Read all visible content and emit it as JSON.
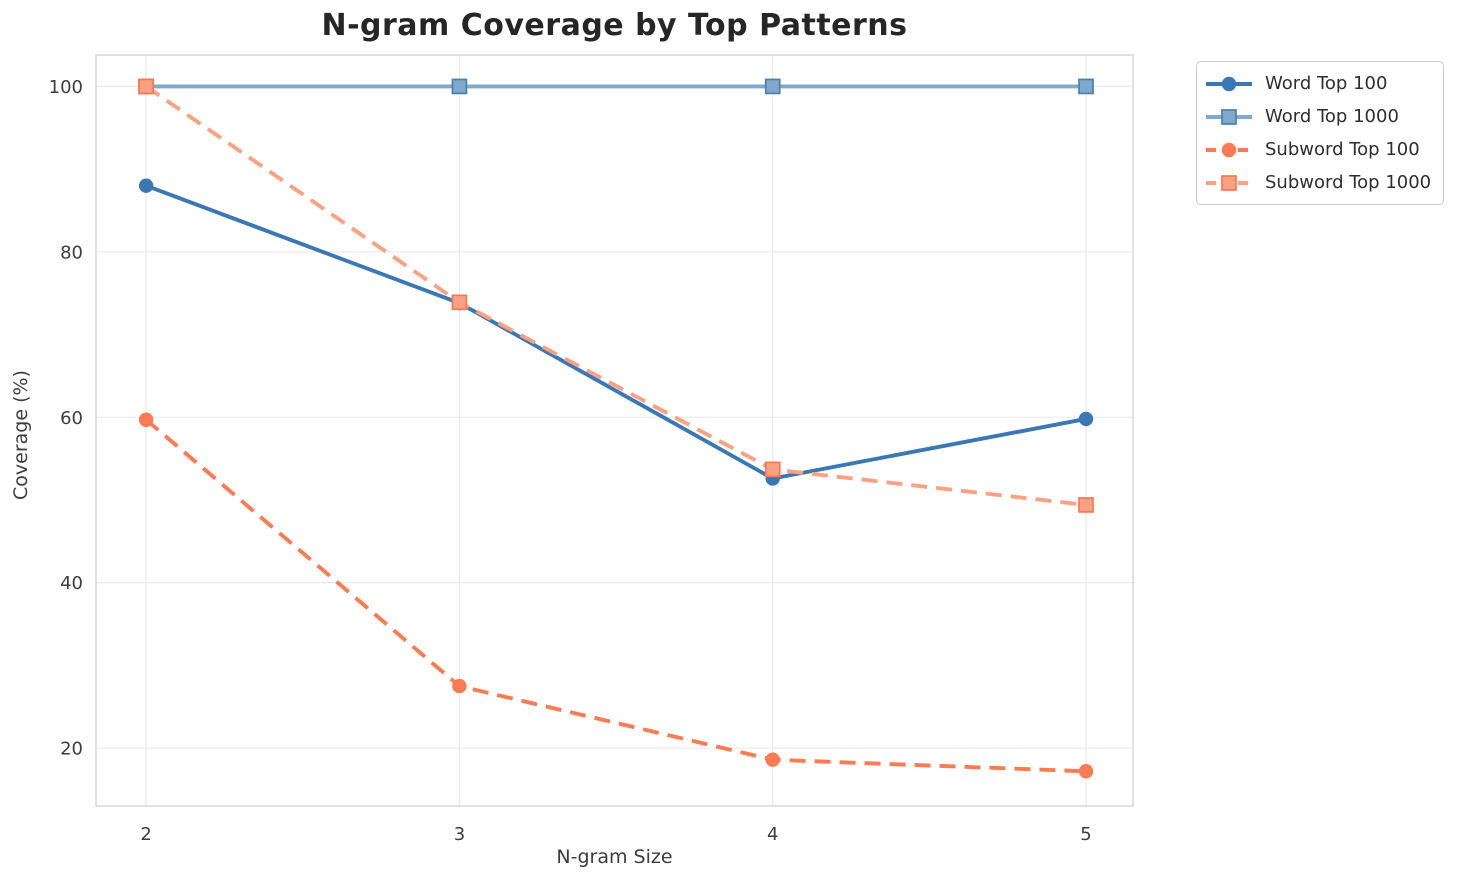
{
  "chart_data": {
    "type": "line",
    "title": "N-gram Coverage by Top Patterns",
    "xlabel": "N-gram Size",
    "ylabel": "Coverage (%)",
    "x": [
      2,
      3,
      4,
      5
    ],
    "xtick_labels": [
      "2",
      "3",
      "4",
      "5"
    ],
    "ytick_values": [
      20,
      40,
      60,
      80,
      100
    ],
    "ytick_labels": [
      "20",
      "40",
      "60",
      "80",
      "100"
    ],
    "xlim": [
      1.84,
      5.15
    ],
    "ylim": [
      13.0,
      103.8
    ],
    "grid": true,
    "legend_position": "outside-top-right",
    "series": [
      {
        "name": "Word Top 100",
        "color": "#3a78b5",
        "line_style": "solid",
        "marker": "circle",
        "marker_edge": "#3a78b5",
        "values": [
          88.0,
          73.8,
          52.6,
          59.8
        ]
      },
      {
        "name": "Word Top 1000",
        "color": "#7fa8cd",
        "line_style": "solid",
        "marker": "square",
        "marker_edge": "#4d7fae",
        "values": [
          100,
          100,
          100,
          100
        ]
      },
      {
        "name": "Subword Top 100",
        "color": "#fc7b52",
        "line_style": "dashed",
        "marker": "circle",
        "marker_edge": "#fc7b52",
        "values": [
          59.7,
          27.5,
          18.6,
          17.2
        ]
      },
      {
        "name": "Subword Top 1000",
        "color": "#fda183",
        "line_style": "dashed",
        "marker": "square",
        "marker_edge": "#fb7750",
        "values": [
          100,
          73.9,
          53.7,
          49.4
        ]
      }
    ],
    "colors": {
      "grid": "#ebebeb",
      "axes_border": "#d4d4d4",
      "tick_text": "#3d3d3d",
      "title_text": "#262626"
    }
  }
}
